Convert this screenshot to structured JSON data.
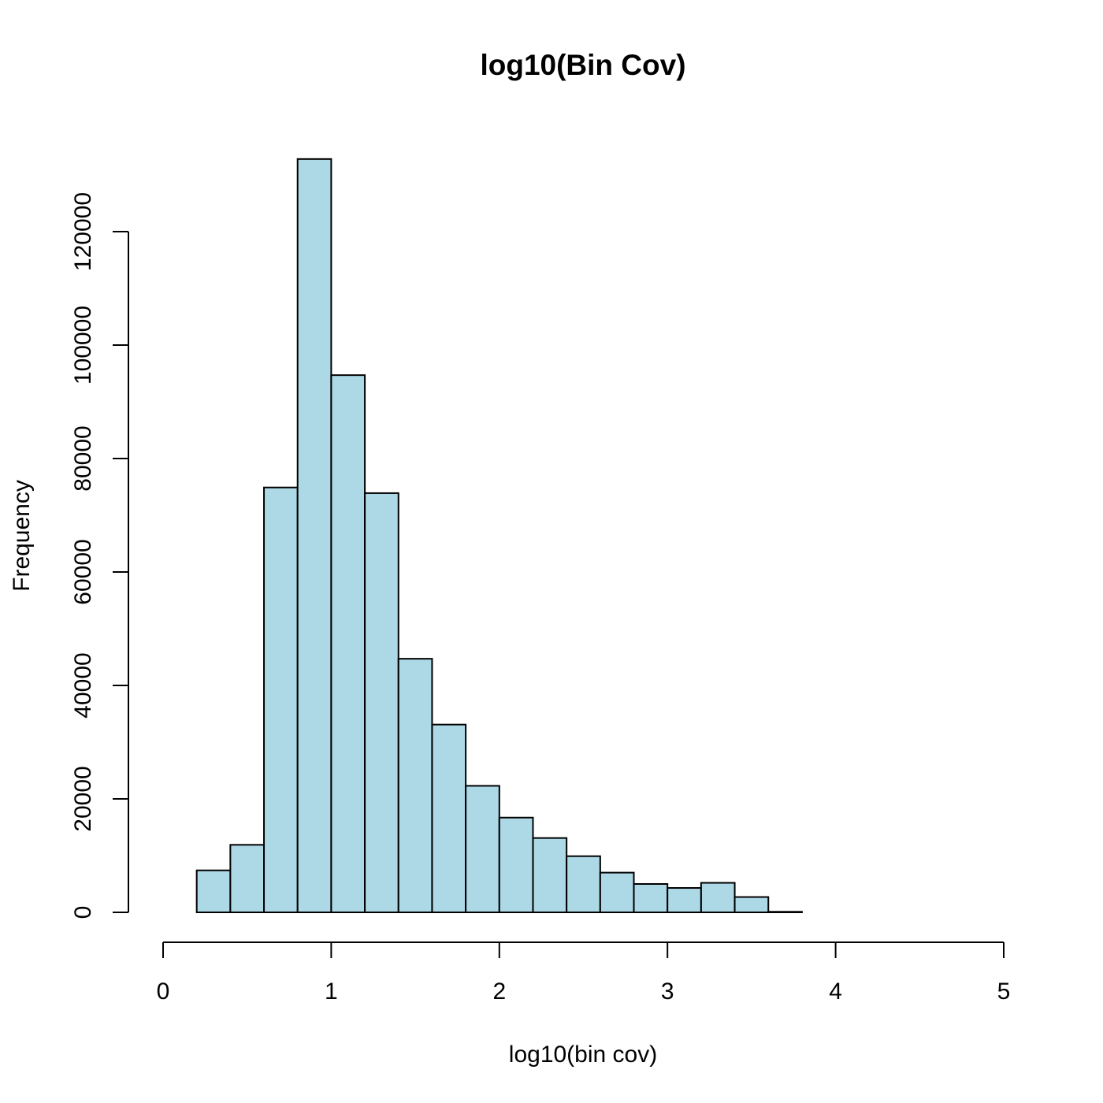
{
  "chart_data": {
    "type": "bar",
    "title": "log10(Bin Cov)",
    "xlabel": "log10(bin cov)",
    "ylabel": "Frequency",
    "bar_color": "#add8e6",
    "edge_color": "#000000",
    "xlim": [
      0,
      5
    ],
    "ylim": [
      0,
      135000
    ],
    "x_ticks": [
      0,
      1,
      2,
      3,
      4,
      5
    ],
    "y_ticks": [
      0,
      20000,
      40000,
      60000,
      80000,
      100000,
      120000
    ],
    "x_tick_labels": [
      "0",
      "1",
      "2",
      "3",
      "4",
      "5"
    ],
    "y_tick_labels": [
      "0",
      "20000",
      "40000",
      "60000",
      "80000",
      "100000",
      "120000"
    ],
    "grid": false,
    "bin_edges": [
      0.2,
      0.4,
      0.6,
      0.8,
      1.0,
      1.2,
      1.4,
      1.6,
      1.8,
      2.0,
      2.2,
      2.4,
      2.6,
      2.8,
      3.0,
      3.2,
      3.4,
      3.6,
      3.8
    ],
    "values": [
      7400,
      11900,
      74900,
      132800,
      94700,
      73900,
      44700,
      33100,
      22300,
      16700,
      13100,
      9900,
      7000,
      5000,
      4300,
      5200,
      2700,
      100
    ]
  }
}
